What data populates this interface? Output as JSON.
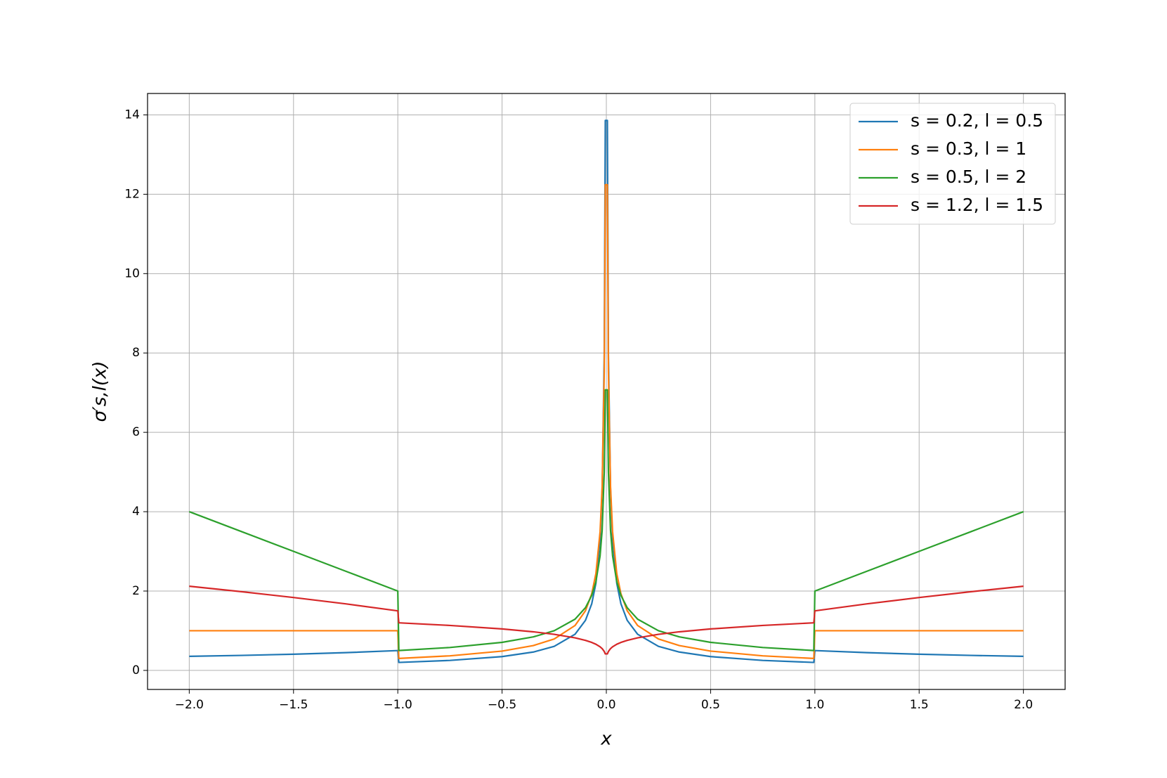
{
  "chart_data": {
    "type": "line",
    "xlabel": "x",
    "ylabel": "σ′s,l(x)",
    "x": [
      -2,
      -1.75,
      -1.5,
      -1.25,
      -1,
      -0.995,
      -0.75,
      -0.5,
      -0.35,
      -0.25,
      -0.15,
      -0.1,
      -0.07,
      -0.05,
      -0.03,
      -0.02,
      -0.01,
      -0.005,
      0.005,
      0.01,
      0.02,
      0.03,
      0.05,
      0.07,
      0.1,
      0.15,
      0.25,
      0.35,
      0.5,
      0.75,
      0.995,
      1,
      1.25,
      1.5,
      1.75,
      2
    ],
    "series": [
      {
        "name": "s = 0.2, l = 0.5",
        "color": "#1f77b4",
        "values": [
          0.354,
          0.378,
          0.408,
          0.447,
          0.5,
          0.201,
          0.252,
          0.348,
          0.463,
          0.606,
          0.912,
          1.262,
          1.679,
          2.197,
          3.306,
          4.573,
          7.962,
          13.86,
          13.86,
          7.962,
          4.573,
          3.306,
          2.197,
          1.679,
          1.262,
          0.912,
          0.606,
          0.463,
          0.348,
          0.252,
          0.201,
          0.5,
          0.447,
          0.408,
          0.378,
          0.354
        ]
      },
      {
        "name": "s = 0.3, l = 1",
        "color": "#ff7f0e",
        "values": [
          1,
          1,
          1,
          1,
          1,
          0.301,
          0.367,
          0.487,
          0.626,
          0.792,
          1.132,
          1.504,
          1.93,
          2.443,
          3.493,
          4.639,
          7.536,
          12.24,
          12.24,
          7.536,
          4.639,
          3.493,
          2.443,
          1.93,
          1.504,
          1.132,
          0.792,
          0.626,
          0.487,
          0.367,
          0.301,
          1,
          1,
          1,
          1,
          1
        ]
      },
      {
        "name": "s = 0.5, l = 2",
        "color": "#2ca02c",
        "values": [
          4,
          3.5,
          3,
          2.5,
          2,
          0.501,
          0.577,
          0.707,
          0.845,
          1,
          1.291,
          1.581,
          1.89,
          2.236,
          2.887,
          3.536,
          5,
          7.071,
          7.071,
          5,
          3.536,
          2.887,
          2.236,
          1.89,
          1.581,
          1.291,
          1,
          0.845,
          0.707,
          0.577,
          0.501,
          2,
          2.5,
          3,
          3.5,
          4
        ]
      },
      {
        "name": "s = 1.2, l = 1.5",
        "color": "#d62728",
        "values": [
          2.121,
          1.984,
          1.837,
          1.677,
          1.5,
          1.199,
          1.133,
          1.045,
          0.973,
          0.909,
          0.821,
          0.757,
          0.705,
          0.659,
          0.595,
          0.549,
          0.478,
          0.416,
          0.416,
          0.478,
          0.549,
          0.595,
          0.659,
          0.705,
          0.757,
          0.821,
          0.909,
          0.973,
          1.045,
          1.133,
          1.199,
          1.5,
          1.677,
          1.837,
          1.984,
          2.121
        ]
      }
    ],
    "xlim": [
      -2.2,
      2.2
    ],
    "xticks": [
      {
        "value": -2,
        "label": "−2.0"
      },
      {
        "value": -1.5,
        "label": "−1.5"
      },
      {
        "value": -1,
        "label": "−1.0"
      },
      {
        "value": -0.5,
        "label": "−0.5"
      },
      {
        "value": 0,
        "label": "0.0"
      },
      {
        "value": 0.5,
        "label": "0.5"
      },
      {
        "value": 1,
        "label": "1.0"
      },
      {
        "value": 1.5,
        "label": "1.5"
      },
      {
        "value": 2,
        "label": "2.0"
      }
    ],
    "ylim": [
      -0.48,
      14.54
    ],
    "yticks": [
      0,
      2,
      4,
      6,
      8,
      10,
      12,
      14
    ],
    "grid": true,
    "legend": "upper-right"
  }
}
